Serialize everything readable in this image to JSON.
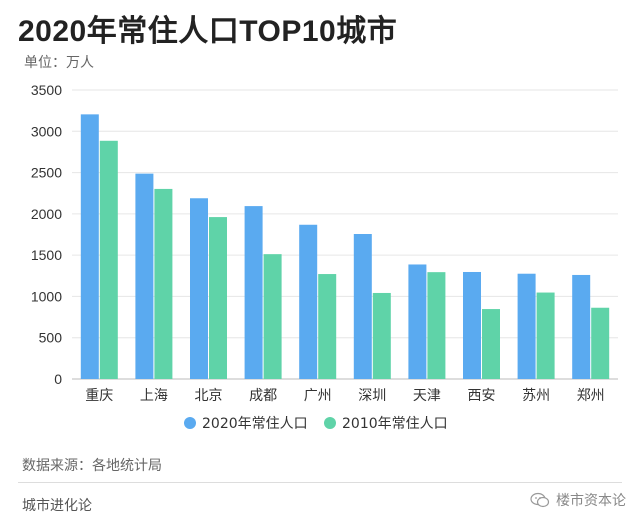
{
  "header": {
    "title": "2020年常住人口TOP10城市",
    "unit": "单位：万人"
  },
  "footer": {
    "source": "数据来源：各地统计局",
    "brand": "城市进化论",
    "watermark_text": "楼市资本论",
    "watermark_icon": "wechat-icon"
  },
  "colors": {
    "series_2020": "#5aaaf0",
    "series_2010": "#5fd3a8",
    "grid": "#e6e6e6",
    "axis_text": "#333333"
  },
  "chart_data": {
    "type": "bar",
    "title": "2020年常住人口TOP10城市",
    "ylabel": "单位：万人",
    "ylim": [
      0,
      3500
    ],
    "yticks": [
      0,
      500,
      1000,
      1500,
      2000,
      2500,
      3000,
      3500
    ],
    "grid": true,
    "legend_position": "bottom",
    "categories": [
      "重庆",
      "上海",
      "北京",
      "成都",
      "广州",
      "深圳",
      "天津",
      "西安",
      "苏州",
      "郑州"
    ],
    "series": [
      {
        "name": "2020年常住人口",
        "color": "#5aaaf0",
        "values": [
          3205,
          2487,
          2189,
          2094,
          1868,
          1756,
          1387,
          1296,
          1275,
          1260
        ]
      },
      {
        "name": "2010年常住人口",
        "color": "#5fd3a8",
        "values": [
          2885,
          2302,
          1961,
          1512,
          1271,
          1042,
          1294,
          847,
          1047,
          863
        ]
      }
    ]
  }
}
